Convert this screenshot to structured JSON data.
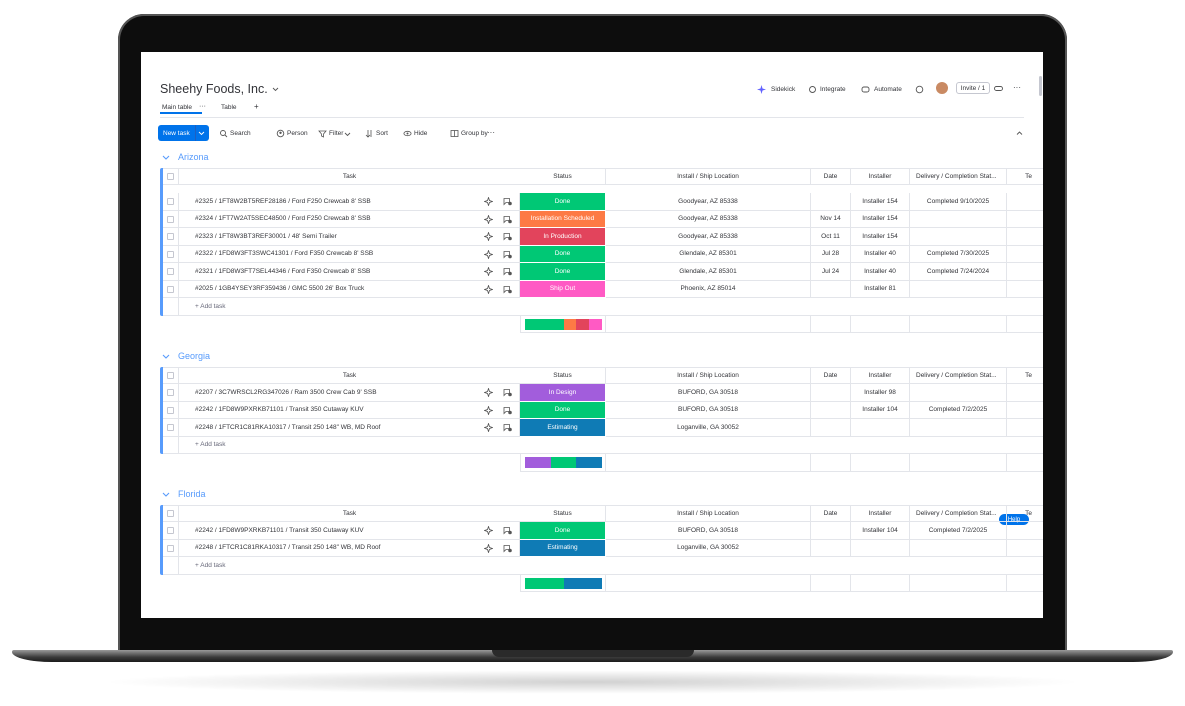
{
  "header": {
    "title": "Sheehy Foods, Inc.",
    "tabs": [
      "Main table",
      "Table"
    ],
    "actions": [
      "Sidekick",
      "Integrate",
      "Automate"
    ],
    "invite": "Invite / 1"
  },
  "toolbar": {
    "new_task": "New task",
    "items": [
      "Search",
      "Person",
      "Filter",
      "Sort",
      "Hide",
      "Group by"
    ]
  },
  "columns": [
    "Task",
    "Status",
    "Install / Ship Location",
    "Date",
    "Installer",
    "Delivery / Completion Stat...",
    "Te"
  ],
  "add_task": "+ Add task",
  "help": "Help",
  "status_colors": {
    "Done": "#00c875",
    "Installation Scheduled": "#fd7a45",
    "In Production": "#e2445c",
    "Ship Out": "#ff5ac4",
    "In Design": "#a25ddc",
    "Estimating": "#0f7bb5"
  },
  "groups": [
    {
      "name": "Arizona",
      "rows": [
        {
          "task": "#2325 / 1FT8W2BT5REF28186 / Ford F250 Crewcab 8' SSB",
          "status": "Done",
          "location": "Goodyear, AZ 85338",
          "installer": "Installer 154",
          "delivery": "Completed 9/10/2025"
        },
        {
          "task": "#2324 / 1FT7W2AT5SEC48500 / Ford F250 Crewcab 8' SSB",
          "status": "Installation Scheduled",
          "location": "Goodyear, AZ 85338",
          "date": "Nov 14",
          "installer": "Installer 154"
        },
        {
          "task": "#2323 / 1FT8W3BT3REF30001 / 48' Semi Trailer",
          "status": "In Production",
          "location": "Goodyear, AZ 85338",
          "date": "Oct 11",
          "installer": "Installer 154"
        },
        {
          "task": "#2322 / 1FD8W3FT3SWC41301 / Ford F350 Crewcab 8' SSB",
          "status": "Done",
          "location": "Glendale, AZ 85301",
          "date": "Jul 28",
          "installer": "Installer 40",
          "delivery": "Completed 7/30/2025"
        },
        {
          "task": "#2321 / 1FD8W3FT7SEL44346 / Ford F350 Crewcab 8' SSB",
          "status": "Done",
          "location": "Glendale, AZ 85301",
          "date": "Jul 24",
          "installer": "Installer 40",
          "delivery": "Completed 7/24/2024"
        },
        {
          "task": "#2025 / 1GB4YSEY3RF359436 / GMC 5500 26' Box Truck",
          "status": "Ship Out",
          "location": "Phoenix, AZ 85014",
          "installer": "Installer 81"
        }
      ]
    },
    {
      "name": "Georgia",
      "rows": [
        {
          "task": "#2207 / 3C7WRSCL2RG347026 / Ram 3500 Crew Cab 9' SSB",
          "status": "In Design",
          "location": "BUFORD, GA 30518",
          "installer": "Installer 98"
        },
        {
          "task": "#2242 / 1FD8W9PXRKB71101 / Transit 350 Cutaway KUV",
          "status": "Done",
          "location": "BUFORD, GA 30518",
          "installer": "Installer 104",
          "delivery": "Completed 7/2/2025"
        },
        {
          "task": "#2248 / 1FTCR1C81RKA10317 / Transit 250 148\" WB, MD Roof",
          "status": "Estimating",
          "location": "Loganville, GA 30052"
        }
      ]
    },
    {
      "name": "Florida",
      "rows": [
        {
          "task": "#2242 / 1FD8W9PXRKB71101 / Transit 350 Cutaway KUV",
          "status": "Done",
          "location": "BUFORD, GA 30518",
          "installer": "Installer 104",
          "delivery": "Completed 7/2/2025"
        },
        {
          "task": "#2248 / 1FTCR1C81RKA10317 / Transit 250 148\" WB, MD Roof",
          "status": "Estimating",
          "location": "Loganville, GA 30052"
        }
      ]
    }
  ]
}
